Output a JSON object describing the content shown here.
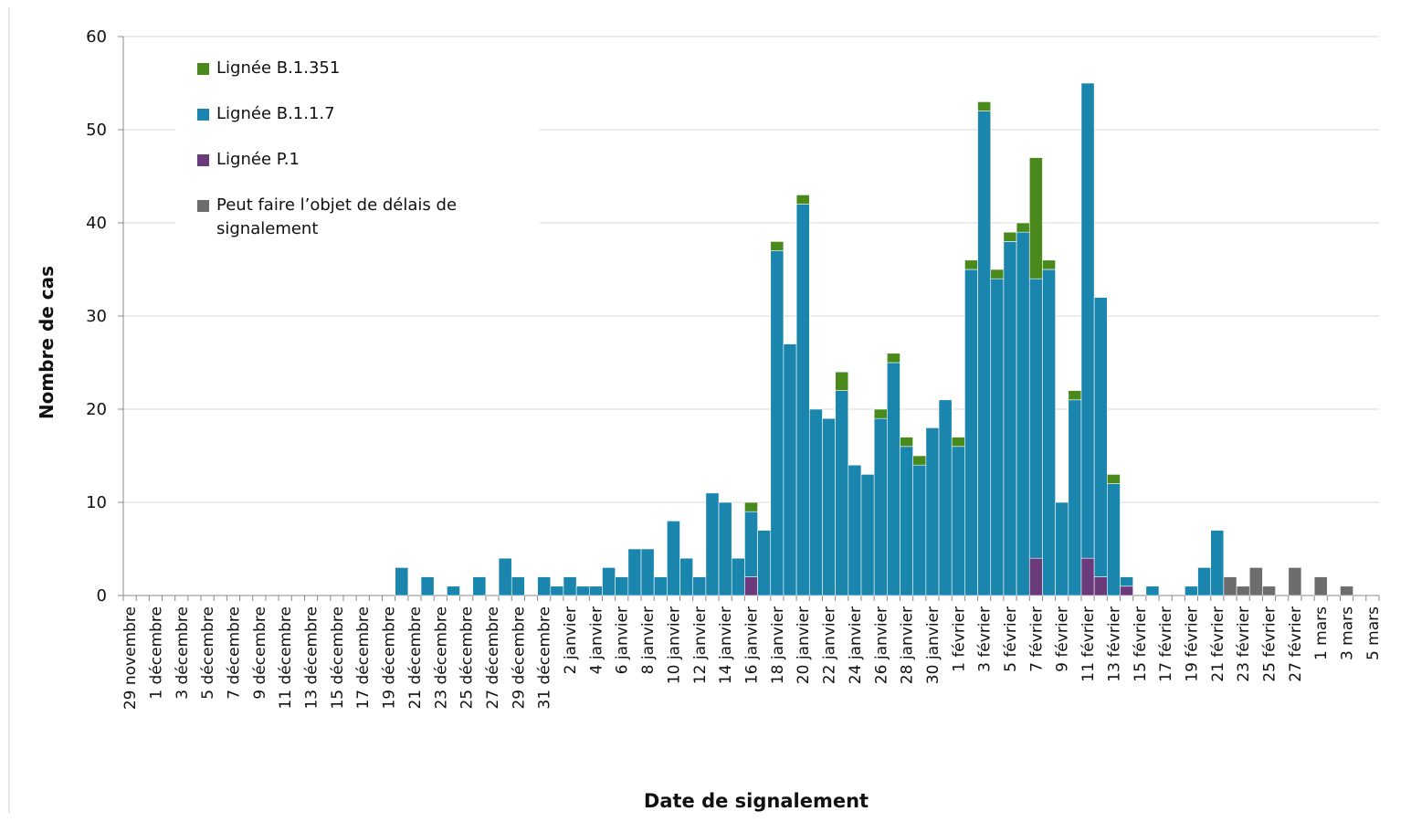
{
  "chart_data": {
    "type": "bar",
    "stacked": true,
    "y_label": "Nombre de cas",
    "x_label": "Date de signalement",
    "ylim": [
      0,
      60
    ],
    "yticks": [
      0,
      10,
      20,
      30,
      40,
      50,
      60
    ],
    "grid": true,
    "legend": "top-left",
    "categories": [
      "29 novembre",
      null,
      "1 décembre",
      null,
      "3 décembre",
      null,
      "5 décembre",
      null,
      "7 décembre",
      null,
      "9 décembre",
      null,
      "11 décembre",
      null,
      "13 décembre",
      null,
      "15 décembre",
      null,
      "17 décembre",
      null,
      "19 décembre",
      null,
      "21 décembre",
      null,
      "23 décembre",
      null,
      "25 décembre",
      null,
      "27 décembre",
      null,
      "29 décembre",
      null,
      "31 décembre",
      null,
      "2 janvier",
      null,
      "4 janvier",
      null,
      "6 janvier",
      null,
      "8 janvier",
      null,
      "10 janvier",
      null,
      "12 janvier",
      null,
      "14 janvier",
      null,
      "16 janvier",
      null,
      "18 janvier",
      null,
      "20 janvier",
      null,
      "22 janvier",
      null,
      "24 janvier",
      null,
      "26 janvier",
      null,
      "28 janvier",
      null,
      "30 janvier",
      null,
      "1 février",
      null,
      "3 février",
      null,
      "5 février",
      null,
      "7 février",
      null,
      "9 février",
      null,
      "11 février",
      null,
      "13 février",
      null,
      "15 février",
      null,
      "17 février",
      null,
      "19 février",
      null,
      "21 février",
      null,
      "23 février",
      null,
      "25 février",
      null,
      "27 février",
      null,
      "1 mars",
      null,
      "3 mars",
      null,
      "5 mars"
    ],
    "series": [
      {
        "name": "Peut faire l’objet de délais de signalement",
        "color": "#6d6d6d",
        "values": [
          0,
          0,
          0,
          0,
          0,
          0,
          0,
          0,
          0,
          0,
          0,
          0,
          0,
          0,
          0,
          0,
          0,
          0,
          0,
          0,
          0,
          0,
          0,
          0,
          0,
          0,
          0,
          0,
          0,
          0,
          0,
          0,
          0,
          0,
          0,
          0,
          0,
          0,
          0,
          0,
          0,
          0,
          0,
          0,
          0,
          0,
          0,
          0,
          0,
          0,
          0,
          0,
          0,
          0,
          0,
          0,
          0,
          0,
          0,
          0,
          0,
          0,
          0,
          0,
          0,
          0,
          0,
          0,
          0,
          0,
          0,
          0,
          0,
          0,
          0,
          0,
          0,
          0,
          0,
          0,
          0,
          0,
          0,
          0,
          0,
          2,
          1,
          3,
          1,
          0,
          3,
          0,
          2,
          0,
          1,
          0,
          0
        ]
      },
      {
        "name": "Lignée P.1",
        "color": "#6a3a7b",
        "values": [
          0,
          0,
          0,
          0,
          0,
          0,
          0,
          0,
          0,
          0,
          0,
          0,
          0,
          0,
          0,
          0,
          0,
          0,
          0,
          0,
          0,
          0,
          0,
          0,
          0,
          0,
          0,
          0,
          0,
          0,
          0,
          0,
          0,
          0,
          0,
          0,
          0,
          0,
          0,
          0,
          0,
          0,
          0,
          0,
          0,
          0,
          0,
          0,
          2,
          0,
          0,
          0,
          0,
          0,
          0,
          0,
          0,
          0,
          0,
          0,
          0,
          0,
          0,
          0,
          0,
          0,
          0,
          0,
          0,
          0,
          4,
          0,
          0,
          0,
          4,
          2,
          0,
          1,
          0,
          0,
          0,
          0,
          0,
          0,
          0,
          0,
          0,
          0,
          0,
          0,
          0,
          0,
          0,
          0,
          0,
          0,
          0
        ]
      },
      {
        "name": "Lignée B.1.1.7",
        "color": "#1a86ad",
        "values": [
          0,
          0,
          0,
          0,
          0,
          0,
          0,
          0,
          0,
          0,
          0,
          0,
          0,
          0,
          0,
          0,
          0,
          0,
          0,
          0,
          0,
          3,
          0,
          2,
          0,
          1,
          0,
          2,
          0,
          4,
          2,
          0,
          2,
          1,
          2,
          1,
          1,
          3,
          2,
          5,
          5,
          2,
          8,
          4,
          2,
          11,
          10,
          4,
          7,
          7,
          37,
          27,
          42,
          20,
          19,
          22,
          14,
          13,
          19,
          25,
          16,
          14,
          18,
          21,
          16,
          35,
          52,
          34,
          38,
          39,
          30,
          35,
          10,
          21,
          51,
          30,
          12,
          1,
          0,
          1,
          0,
          0,
          1,
          3,
          7,
          0,
          0,
          0,
          0,
          0,
          0,
          0,
          0,
          0,
          0,
          0,
          0
        ]
      },
      {
        "name": "Lignée B.1.351",
        "color": "#4a8a1c",
        "values": [
          0,
          0,
          0,
          0,
          0,
          0,
          0,
          0,
          0,
          0,
          0,
          0,
          0,
          0,
          0,
          0,
          0,
          0,
          0,
          0,
          0,
          0,
          0,
          0,
          0,
          0,
          0,
          0,
          0,
          0,
          0,
          0,
          0,
          0,
          0,
          0,
          0,
          0,
          0,
          0,
          0,
          0,
          0,
          0,
          0,
          0,
          0,
          0,
          1,
          0,
          1,
          0,
          1,
          0,
          0,
          2,
          0,
          0,
          1,
          1,
          1,
          1,
          0,
          0,
          1,
          1,
          1,
          1,
          1,
          1,
          13,
          1,
          0,
          1,
          0,
          0,
          1,
          0,
          0,
          0,
          0,
          0,
          0,
          0,
          0,
          0,
          0,
          0,
          0,
          0,
          0,
          0,
          0,
          0,
          0,
          0,
          0
        ]
      }
    ]
  }
}
